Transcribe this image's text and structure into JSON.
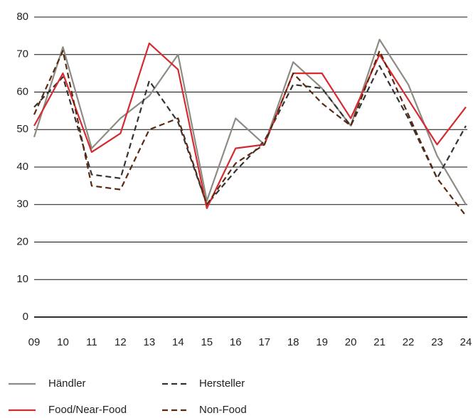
{
  "chart_data": {
    "type": "line",
    "categories": [
      "09",
      "10",
      "11",
      "12",
      "13",
      "14",
      "15",
      "16",
      "17",
      "18",
      "19",
      "20",
      "21",
      "22",
      "23",
      "24"
    ],
    "series": [
      {
        "name": "Händler",
        "color": "#8c8c84",
        "dash": false,
        "values": [
          48,
          72,
          45,
          53,
          59,
          70,
          31,
          53,
          46,
          68,
          61,
          51,
          74,
          62,
          43,
          30
        ]
      },
      {
        "name": "Hersteller",
        "color": "#333333",
        "dash": true,
        "values": [
          56,
          64,
          38,
          37,
          63,
          52,
          30,
          39,
          47,
          62,
          61,
          51,
          67,
          53,
          37,
          51
        ]
      },
      {
        "name": "Food/Near-Food",
        "color": "#d42a30",
        "dash": false,
        "values": [
          51,
          65,
          44,
          49,
          73,
          66,
          29,
          45,
          46,
          65,
          65,
          53,
          70,
          58,
          46,
          56
        ]
      },
      {
        "name": "Non-Food",
        "color": "#5a2a10",
        "dash": true,
        "values": [
          54,
          71,
          35,
          34,
          50,
          53,
          30,
          41,
          46,
          65,
          57,
          51,
          71,
          54,
          37,
          27
        ]
      }
    ],
    "ylim": [
      0,
      80
    ],
    "yticks": [
      0,
      10,
      20,
      30,
      40,
      50,
      60,
      70,
      80
    ],
    "grid": true
  }
}
